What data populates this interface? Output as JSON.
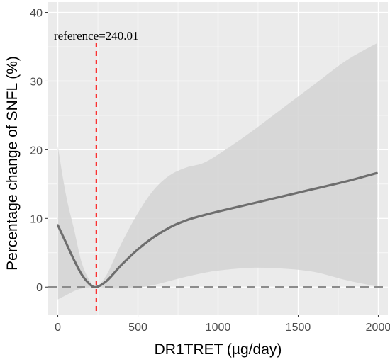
{
  "chart_data": {
    "type": "line",
    "title": "",
    "xlabel": "DR1TRET (µg/day)",
    "ylabel": "Percentage change of SNFL (%)",
    "xlim": [
      -60,
      2060
    ],
    "ylim": [
      -4,
      41.5
    ],
    "x_ticks": [
      0,
      500,
      1000,
      1500,
      2000
    ],
    "y_ticks": [
      0,
      10,
      20,
      30,
      40
    ],
    "x_tick_labels": [
      "0",
      "500",
      "1000",
      "1500",
      "2000"
    ],
    "y_tick_labels": [
      "0",
      "10",
      "20",
      "30",
      "40"
    ],
    "grid": true,
    "legend": "none",
    "reference_value": 240.01,
    "reference_label": "reference=240.01",
    "baseline_y": 0,
    "series": [
      {
        "x": [
          0,
          50,
          100,
          150,
          200,
          240.01,
          300,
          350,
          400,
          500,
          600,
          700,
          800,
          900,
          1000,
          1200,
          1400,
          1600,
          1800,
          1990
        ],
        "y": [
          9.0,
          6.5,
          4.0,
          1.8,
          0.4,
          0.0,
          0.8,
          2.0,
          3.3,
          5.5,
          7.3,
          8.7,
          9.7,
          10.4,
          11.0,
          12.1,
          13.2,
          14.3,
          15.4,
          16.6
        ],
        "ci_lower": [
          -1.8,
          -1.2,
          -0.6,
          -0.2,
          -0.05,
          0.0,
          -0.1,
          -0.2,
          -0.2,
          -0.1,
          0.3,
          0.9,
          1.5,
          2.0,
          2.4,
          2.8,
          2.7,
          2.2,
          1.0,
          0.1
        ],
        "ci_upper": [
          20.5,
          13.5,
          8.5,
          3.5,
          0.9,
          0.0,
          1.6,
          4.0,
          6.5,
          10.8,
          14.2,
          16.3,
          17.4,
          18.0,
          19.3,
          22.5,
          26.0,
          29.5,
          33.0,
          35.5
        ]
      }
    ],
    "colors": {
      "panel_bg": "#ebebeb",
      "grid": "#ffffff",
      "line": "#6e6e6e",
      "ribbon": "#d4d4d4",
      "reference_line": "#ff0000",
      "baseline": "#8c8c8c"
    }
  }
}
